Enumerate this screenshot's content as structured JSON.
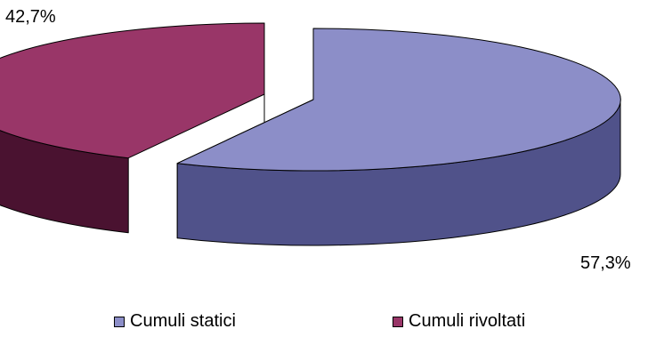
{
  "chart_data": {
    "type": "pie",
    "style": "3d-exploded",
    "slices": [
      {
        "label": "Cumuli statici",
        "value": 57.3,
        "value_label": "57,3%",
        "color": "#8c8ec8",
        "side_color": "#50528a"
      },
      {
        "label": "Cumuli rivoltati",
        "value": 42.7,
        "value_label": "42,7%",
        "color": "#993668",
        "side_color": "#4a1230"
      }
    ],
    "legend_position": "bottom"
  }
}
